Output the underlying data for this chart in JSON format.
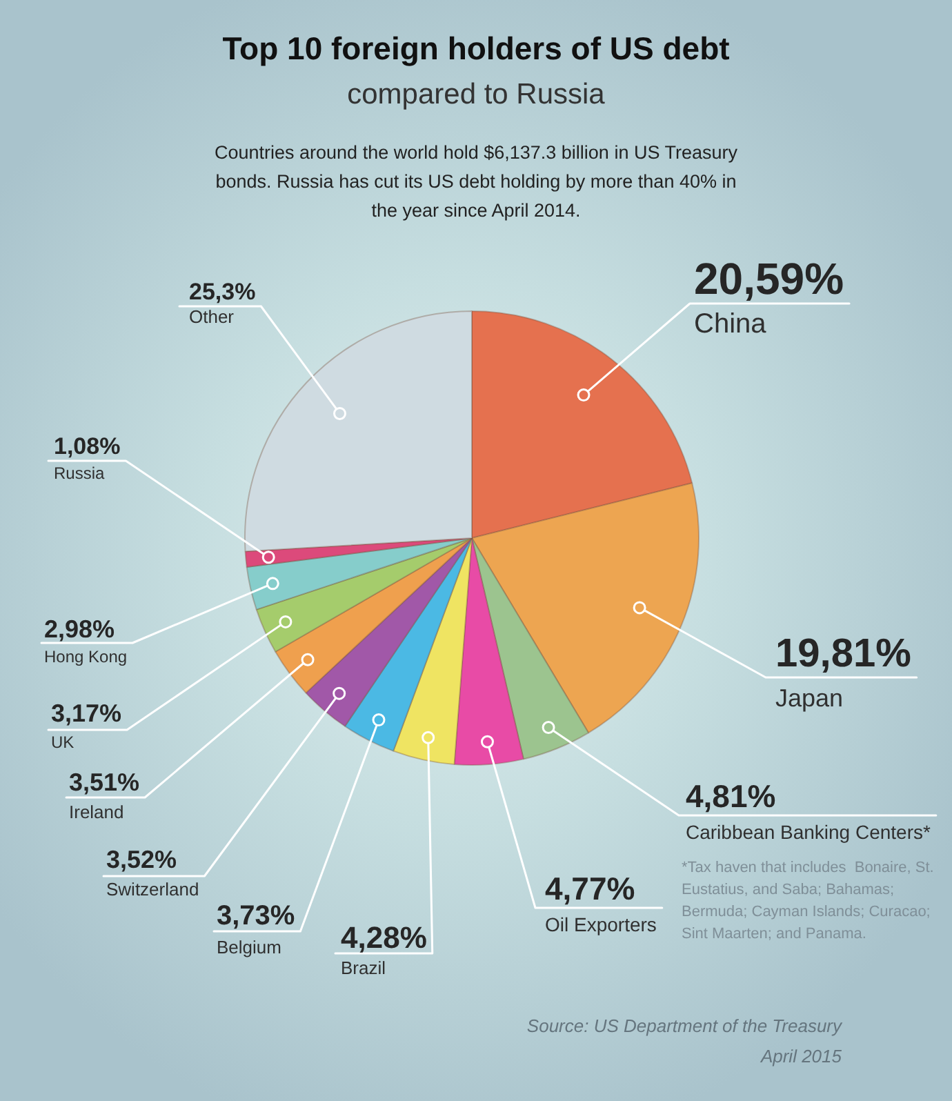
{
  "chart_data": {
    "type": "pie",
    "title": "Top 10 foreign holders of US debt",
    "subtitle": "compared to Russia",
    "categories": [
      "China",
      "Japan",
      "Caribbean Banking Centers*",
      "Oil Exporters",
      "Brazil",
      "Belgium",
      "Switzerland",
      "Ireland",
      "UK",
      "Hong Kong",
      "Russia",
      "Other"
    ],
    "values": [
      20.59,
      19.81,
      4.81,
      4.77,
      4.28,
      3.73,
      3.52,
      3.51,
      3.17,
      2.98,
      1.08,
      25.3
    ],
    "value_labels": [
      "20,59%",
      "19,81%",
      "4,81%",
      "4,77%",
      "4,28%",
      "3,73%",
      "3,52%",
      "3,51%",
      "3,17%",
      "2,98%",
      "1,08%",
      "25,3%"
    ],
    "colors": [
      "#e5714f",
      "#eda551",
      "#9cc48f",
      "#e84ba6",
      "#efe462",
      "#4bb9e4",
      "#a158a8",
      "#efa04e",
      "#a5cc6c",
      "#86cdcb",
      "#dc4a7b",
      "#cfdbe1"
    ],
    "annotations": [
      "Countries around the world hold $6,137.3 billion in US Treasury bonds. Russia has cut its US debt holding by more than 40% in the year since April 2014.",
      "*Tax haven that includes  Bonaire, St. Eustatius, and Saba; Bahamas; Bermuda; Cayman Islands; Curacao; Sint Maarten; and Panama.",
      "Source: US Department of the Treasury",
      "April 2015"
    ]
  }
}
